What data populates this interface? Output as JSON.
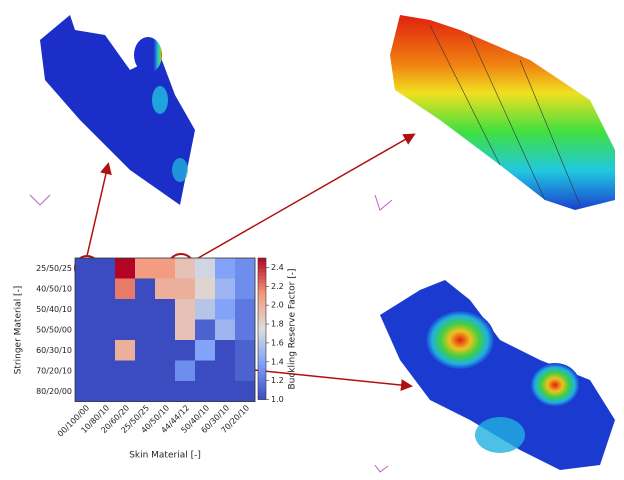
{
  "chart_data": {
    "type": "heatmap",
    "x_label": "Skin Material [-]",
    "y_label": "Stringer Material [-]",
    "colorbar_label": "Buckling Reserve Factor [-]",
    "cmap": "coolwarm",
    "x_categories": [
      "00/100/00",
      "10/80/10",
      "20/60/20",
      "25/50/25",
      "40/50/10",
      "44/44/12",
      "50/40/10",
      "60/30/10",
      "70/20/10"
    ],
    "y_categories": [
      "25/50/25",
      "40/50/10",
      "50/40/10",
      "50/50/00",
      "60/30/10",
      "70/20/10",
      "80/20/00"
    ],
    "values": [
      [
        1.0,
        1.0,
        2.5,
        2.1,
        2.1,
        1.9,
        1.7,
        1.4,
        1.3
      ],
      [
        1.0,
        1.0,
        2.2,
        1.0,
        2.0,
        2.0,
        1.8,
        1.5,
        1.3
      ],
      [
        1.0,
        1.0,
        1.0,
        1.0,
        1.0,
        1.9,
        1.6,
        1.4,
        1.2
      ],
      [
        1.0,
        1.0,
        1.0,
        1.0,
        1.0,
        1.9,
        1.1,
        1.5,
        1.2
      ],
      [
        1.0,
        1.0,
        2.0,
        1.0,
        1.0,
        1.0,
        1.4,
        1.0,
        1.1
      ],
      [
        1.0,
        1.0,
        1.0,
        1.0,
        1.0,
        1.3,
        1.0,
        1.0,
        1.1
      ],
      [
        1.0,
        1.0,
        1.0,
        1.0,
        1.0,
        1.0,
        1.0,
        1.0,
        1.0
      ]
    ],
    "clim": [
      1.0,
      2.5
    ],
    "cticks": [
      {
        "value": 1,
        "label": "1.0"
      },
      1.2,
      1.4,
      1.6,
      1.8,
      {
        "value": 2,
        "label": "2.0"
      },
      2.2,
      2.4
    ]
  }
}
